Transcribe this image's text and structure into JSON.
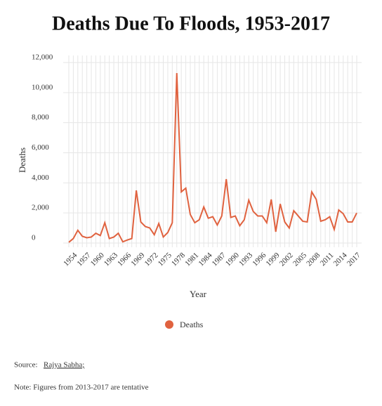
{
  "chart_data": {
    "type": "line",
    "title": "Deaths Due To Floods, 1953-2017",
    "x_label": "Year",
    "y_label": "Deaths",
    "x": [
      1953,
      1954,
      1955,
      1956,
      1957,
      1958,
      1959,
      1960,
      1961,
      1962,
      1963,
      1964,
      1965,
      1966,
      1967,
      1968,
      1969,
      1970,
      1971,
      1972,
      1973,
      1974,
      1975,
      1976,
      1977,
      1978,
      1979,
      1980,
      1981,
      1982,
      1983,
      1984,
      1985,
      1986,
      1987,
      1988,
      1989,
      1990,
      1991,
      1992,
      1993,
      1994,
      1995,
      1996,
      1997,
      1998,
      1999,
      2000,
      2001,
      2002,
      2003,
      2004,
      2005,
      2006,
      2007,
      2008,
      2009,
      2010,
      2011,
      2012,
      2013,
      2014,
      2015,
      2016,
      2017
    ],
    "series": [
      {
        "name": "Deaths",
        "color": "#e0623f",
        "values": [
          50,
          300,
          850,
          450,
          350,
          400,
          650,
          500,
          1350,
          300,
          400,
          650,
          80,
          200,
          300,
          3500,
          1400,
          1100,
          1000,
          550,
          1300,
          400,
          700,
          1350,
          11300,
          3400,
          3650,
          1900,
          1350,
          1550,
          2400,
          1650,
          1750,
          1200,
          1800,
          4250,
          1700,
          1800,
          1150,
          1550,
          2850,
          2100,
          1800,
          1800,
          1350,
          2900,
          750,
          2600,
          1400,
          1000,
          2150,
          1800,
          1450,
          1400,
          3400,
          2900,
          1450,
          1550,
          1750,
          900,
          2200,
          1950,
          1400,
          1400,
          2000
        ]
      }
    ],
    "xlim": [
      1953,
      2017
    ],
    "xticks": [
      1954,
      1957,
      1960,
      1963,
      1966,
      1969,
      1972,
      1975,
      1978,
      1981,
      1984,
      1987,
      1990,
      1993,
      1996,
      1999,
      2002,
      2005,
      2008,
      2011,
      2014,
      2017
    ],
    "ylim": [
      0,
      12000
    ],
    "yticks": [
      0,
      {
        "value": 2000,
        "label": "2,000"
      },
      {
        "value": 4000,
        "label": "4,000"
      },
      {
        "value": 6000,
        "label": "6,000"
      },
      {
        "value": 8000,
        "label": "8,000"
      },
      {
        "value": 10000,
        "label": "10,000"
      },
      {
        "value": 12000,
        "label": "12,000"
      }
    ],
    "grid": true,
    "source_label": "Source:",
    "source": "Rajya Sabha;",
    "note": "Note: Figures from 2013-2017 are tentative"
  }
}
